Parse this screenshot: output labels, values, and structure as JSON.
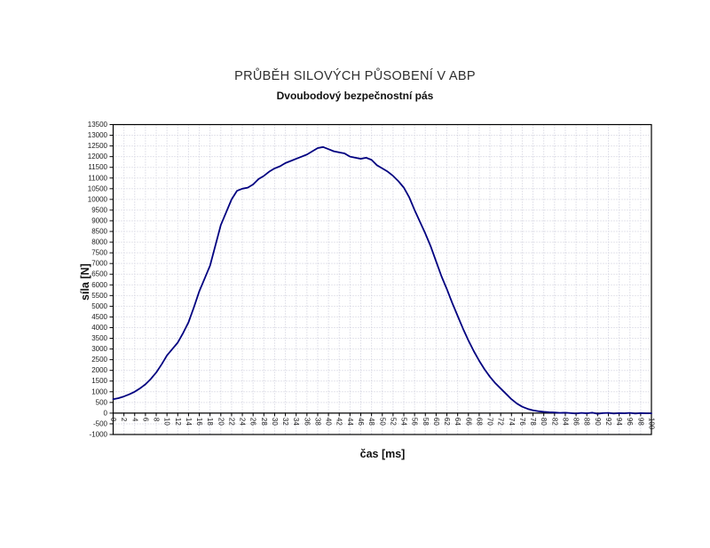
{
  "page": {
    "background_color": "#ffffff"
  },
  "chart": {
    "title": "PRŮBĚH SILOVÝCH PŮSOBENÍ V ABP",
    "subtitle": "Dvoubodový bezpečnostní pás",
    "x_axis_title": "čas [ms]",
    "y_axis_title": "síla [N]"
  },
  "style": {
    "line_color": "#000080",
    "grid_color": "#c8c8d8",
    "axis_color": "#000000",
    "text_color": "#1a1a1a"
  },
  "chart_data": {
    "type": "line",
    "title": "PRŮBĚH SILOVÝCH PŮSOBENÍ V ABP",
    "subtitle": "Dvoubodový bezpečnostní pás",
    "xlabel": "čas [ms]",
    "ylabel": "síla [N]",
    "xlim": [
      0,
      100
    ],
    "ylim": [
      -1000,
      13500
    ],
    "x_tick_step": 2,
    "y_tick_step": 500,
    "grid": true,
    "legend_position": "none",
    "series": [
      {
        "name": "síla",
        "color": "#000080",
        "x": [
          0,
          1,
          2,
          3,
          4,
          5,
          6,
          7,
          8,
          9,
          10,
          11,
          12,
          13,
          14,
          15,
          16,
          17,
          18,
          19,
          20,
          21,
          22,
          23,
          24,
          25,
          26,
          27,
          28,
          29,
          30,
          31,
          32,
          33,
          34,
          35,
          36,
          37,
          38,
          39,
          40,
          41,
          42,
          43,
          44,
          45,
          46,
          47,
          48,
          49,
          50,
          51,
          52,
          53,
          54,
          55,
          56,
          57,
          58,
          59,
          60,
          61,
          62,
          63,
          64,
          65,
          66,
          67,
          68,
          69,
          70,
          71,
          72,
          73,
          74,
          75,
          76,
          77,
          78,
          79,
          80,
          81,
          82,
          83,
          84,
          85,
          86,
          87,
          88,
          89,
          90,
          91,
          92,
          93,
          94,
          95,
          96,
          97,
          98,
          99,
          100
        ],
        "y": [
          650,
          700,
          780,
          880,
          1000,
          1160,
          1350,
          1600,
          1900,
          2280,
          2700,
          3000,
          3300,
          3750,
          4250,
          4950,
          5700,
          6300,
          6900,
          7850,
          8800,
          9400,
          10000,
          10400,
          10500,
          10550,
          10700,
          10950,
          11100,
          11300,
          11450,
          11550,
          11700,
          11800,
          11900,
          12000,
          12100,
          12250,
          12400,
          12450,
          12350,
          12250,
          12200,
          12150,
          12000,
          11950,
          11900,
          11950,
          11850,
          11600,
          11450,
          11300,
          11100,
          10850,
          10550,
          10100,
          9500,
          8950,
          8400,
          7800,
          7100,
          6400,
          5800,
          5150,
          4550,
          3950,
          3400,
          2900,
          2450,
          2050,
          1700,
          1400,
          1150,
          900,
          650,
          450,
          300,
          200,
          130,
          90,
          60,
          40,
          30,
          10,
          20,
          0,
          -20,
          10,
          -10,
          20,
          -30,
          0,
          10,
          -20,
          0,
          -10,
          10,
          -20,
          0,
          -10,
          -10
        ]
      }
    ]
  }
}
